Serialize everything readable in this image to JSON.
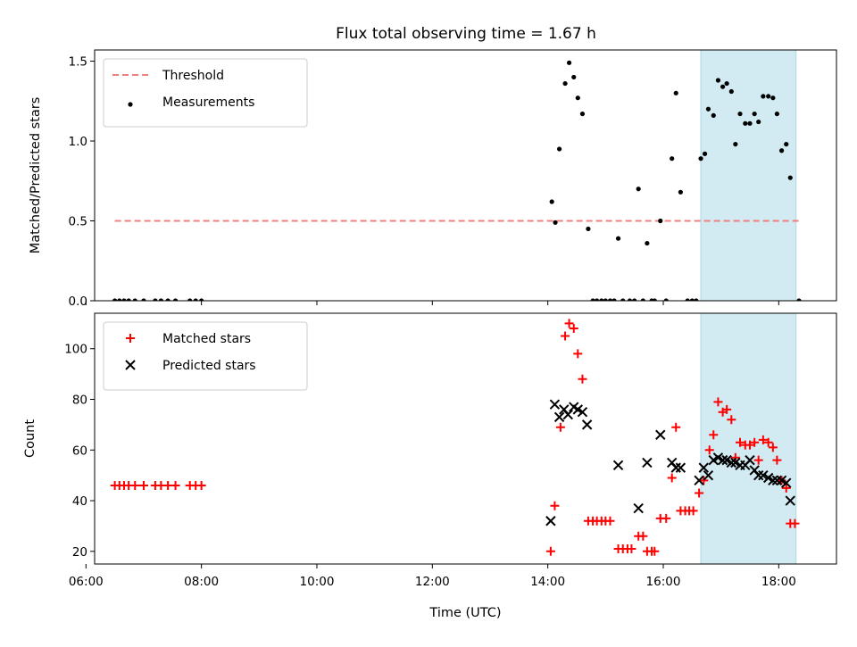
{
  "title": "Flux total observing time = 1.67 h",
  "colors": {
    "threshold": "#f08080",
    "measurement": "#000000",
    "matched": "#ff0000",
    "predicted": "#000000",
    "span": "#add8e6"
  },
  "chart_data": [
    {
      "type": "scatter",
      "title": "Flux total observing time = 1.67 h",
      "xlabel": "",
      "ylabel": "Matched/Predicted stars",
      "xlim": [
        6.15,
        19.0
      ],
      "ylim": [
        0,
        1.57
      ],
      "yticks": [
        "0.0",
        "0.5",
        "1.0",
        "1.5"
      ],
      "ytick_values": [
        0,
        0.5,
        1.0,
        1.5
      ],
      "xtick_values": [
        6,
        8,
        10,
        12,
        14,
        16,
        18
      ],
      "shaded_span": [
        16.65,
        18.3
      ],
      "legend_position": "top-left",
      "threshold": {
        "name": "Threshold",
        "x": [
          6.5,
          18.4
        ],
        "y": 0.5
      },
      "series": [
        {
          "name": "Measurements",
          "marker": "dot",
          "points": [
            [
              6.5,
              0
            ],
            [
              6.58,
              0
            ],
            [
              6.66,
              0
            ],
            [
              6.74,
              0
            ],
            [
              6.85,
              0
            ],
            [
              7.0,
              0
            ],
            [
              7.2,
              0
            ],
            [
              7.3,
              0
            ],
            [
              7.42,
              0
            ],
            [
              7.55,
              0
            ],
            [
              7.8,
              0
            ],
            [
              7.9,
              0
            ],
            [
              8.0,
              0
            ],
            [
              14.07,
              0.62
            ],
            [
              14.13,
              0.49
            ],
            [
              14.2,
              0.95
            ],
            [
              14.3,
              1.36
            ],
            [
              14.37,
              1.49
            ],
            [
              14.45,
              1.4
            ],
            [
              14.52,
              1.27
            ],
            [
              14.6,
              1.17
            ],
            [
              14.7,
              0.45
            ],
            [
              14.78,
              0
            ],
            [
              14.85,
              0
            ],
            [
              14.93,
              0
            ],
            [
              15.0,
              0
            ],
            [
              15.08,
              0
            ],
            [
              15.15,
              0
            ],
            [
              15.22,
              0.39
            ],
            [
              15.3,
              0
            ],
            [
              15.42,
              0
            ],
            [
              15.5,
              0
            ],
            [
              15.57,
              0.7
            ],
            [
              15.65,
              0
            ],
            [
              15.72,
              0.36
            ],
            [
              15.8,
              0
            ],
            [
              15.85,
              0
            ],
            [
              15.95,
              0.5
            ],
            [
              16.05,
              0
            ],
            [
              16.15,
              0.89
            ],
            [
              16.22,
              1.3
            ],
            [
              16.3,
              0.68
            ],
            [
              16.42,
              0
            ],
            [
              16.5,
              0
            ],
            [
              16.57,
              0
            ],
            [
              16.65,
              0.89
            ],
            [
              16.72,
              0.92
            ],
            [
              16.78,
              1.2
            ],
            [
              16.87,
              1.16
            ],
            [
              16.95,
              1.38
            ],
            [
              17.03,
              1.34
            ],
            [
              17.1,
              1.36
            ],
            [
              17.18,
              1.31
            ],
            [
              17.25,
              0.98
            ],
            [
              17.33,
              1.17
            ],
            [
              17.42,
              1.11
            ],
            [
              17.5,
              1.11
            ],
            [
              17.58,
              1.17
            ],
            [
              17.65,
              1.12
            ],
            [
              17.73,
              1.28
            ],
            [
              17.82,
              1.28
            ],
            [
              17.9,
              1.27
            ],
            [
              17.97,
              1.17
            ],
            [
              18.05,
              0.94
            ],
            [
              18.13,
              0.98
            ],
            [
              18.2,
              0.77
            ],
            [
              18.35,
              0
            ]
          ]
        }
      ]
    },
    {
      "type": "scatter",
      "xlabel": "Time (UTC)",
      "ylabel": "Count",
      "xlim": [
        6.15,
        19.0
      ],
      "ylim": [
        15,
        114
      ],
      "yticks": [
        "20",
        "40",
        "60",
        "80",
        "100"
      ],
      "ytick_values": [
        20,
        40,
        60,
        80,
        100
      ],
      "xticks": [
        "06:00",
        "08:00",
        "10:00",
        "12:00",
        "14:00",
        "16:00",
        "18:00"
      ],
      "xtick_values": [
        6,
        8,
        10,
        12,
        14,
        16,
        18
      ],
      "shaded_span": [
        16.65,
        18.3
      ],
      "legend_position": "top-left",
      "series": [
        {
          "name": "Matched stars",
          "marker": "plus",
          "points": [
            [
              6.5,
              46
            ],
            [
              6.58,
              46
            ],
            [
              6.66,
              46
            ],
            [
              6.74,
              46
            ],
            [
              6.85,
              46
            ],
            [
              7.0,
              46
            ],
            [
              7.2,
              46
            ],
            [
              7.3,
              46
            ],
            [
              7.42,
              46
            ],
            [
              7.55,
              46
            ],
            [
              7.8,
              46
            ],
            [
              7.9,
              46
            ],
            [
              8.0,
              46
            ],
            [
              14.05,
              20
            ],
            [
              14.12,
              38
            ],
            [
              14.22,
              69
            ],
            [
              14.3,
              105
            ],
            [
              14.37,
              110
            ],
            [
              14.45,
              108
            ],
            [
              14.52,
              98
            ],
            [
              14.6,
              88
            ],
            [
              14.7,
              32
            ],
            [
              14.78,
              32
            ],
            [
              14.85,
              32
            ],
            [
              14.93,
              32
            ],
            [
              15.0,
              32
            ],
            [
              15.08,
              32
            ],
            [
              15.22,
              21
            ],
            [
              15.3,
              21
            ],
            [
              15.38,
              21
            ],
            [
              15.45,
              21
            ],
            [
              15.57,
              26
            ],
            [
              15.65,
              26
            ],
            [
              15.72,
              20
            ],
            [
              15.8,
              20
            ],
            [
              15.85,
              20
            ],
            [
              15.95,
              33
            ],
            [
              16.05,
              33
            ],
            [
              16.15,
              49
            ],
            [
              16.22,
              69
            ],
            [
              16.3,
              36
            ],
            [
              16.38,
              36
            ],
            [
              16.45,
              36
            ],
            [
              16.52,
              36
            ],
            [
              16.62,
              43
            ],
            [
              16.7,
              48
            ],
            [
              16.8,
              60
            ],
            [
              16.87,
              66
            ],
            [
              16.95,
              79
            ],
            [
              17.03,
              75
            ],
            [
              17.1,
              76
            ],
            [
              17.18,
              72
            ],
            [
              17.25,
              57
            ],
            [
              17.33,
              63
            ],
            [
              17.42,
              62
            ],
            [
              17.5,
              62
            ],
            [
              17.58,
              63
            ],
            [
              17.65,
              56
            ],
            [
              17.73,
              64
            ],
            [
              17.82,
              63
            ],
            [
              17.9,
              61
            ],
            [
              17.97,
              56
            ],
            [
              18.05,
              48
            ],
            [
              18.13,
              45
            ],
            [
              18.2,
              31
            ],
            [
              18.28,
              31
            ]
          ]
        },
        {
          "name": "Predicted stars",
          "marker": "x",
          "points": [
            [
              14.05,
              32
            ],
            [
              14.12,
              78
            ],
            [
              14.2,
              73
            ],
            [
              14.28,
              76
            ],
            [
              14.35,
              74
            ],
            [
              14.45,
              77
            ],
            [
              14.52,
              76
            ],
            [
              14.6,
              75
            ],
            [
              14.68,
              70
            ],
            [
              15.22,
              54
            ],
            [
              15.57,
              37
            ],
            [
              15.72,
              55
            ],
            [
              15.95,
              66
            ],
            [
              16.15,
              55
            ],
            [
              16.22,
              53
            ],
            [
              16.3,
              53
            ],
            [
              16.62,
              48
            ],
            [
              16.7,
              53
            ],
            [
              16.78,
              50
            ],
            [
              16.87,
              56
            ],
            [
              16.95,
              57
            ],
            [
              17.03,
              56
            ],
            [
              17.1,
              56
            ],
            [
              17.18,
              55
            ],
            [
              17.25,
              55
            ],
            [
              17.33,
              54
            ],
            [
              17.42,
              54
            ],
            [
              17.5,
              56
            ],
            [
              17.58,
              52
            ],
            [
              17.65,
              50
            ],
            [
              17.73,
              50
            ],
            [
              17.82,
              49
            ],
            [
              17.9,
              48
            ],
            [
              17.97,
              48
            ],
            [
              18.05,
              48
            ],
            [
              18.13,
              47
            ],
            [
              18.2,
              40
            ]
          ]
        }
      ]
    }
  ]
}
